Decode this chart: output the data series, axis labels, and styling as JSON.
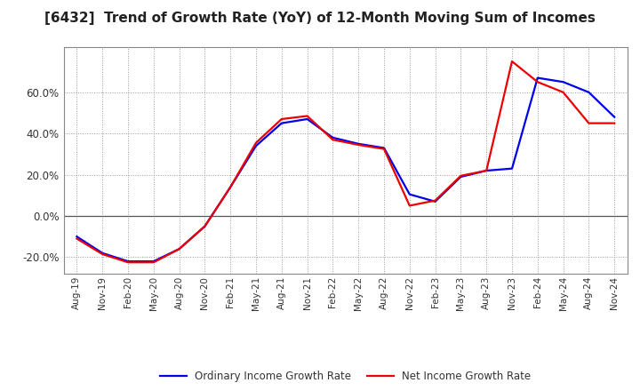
{
  "title": "[6432]  Trend of Growth Rate (YoY) of 12-Month Moving Sum of Incomes",
  "title_fontsize": 11,
  "x_labels": [
    "Aug-19",
    "Nov-19",
    "Feb-20",
    "May-20",
    "Aug-20",
    "Nov-20",
    "Feb-21",
    "May-21",
    "Aug-21",
    "Nov-21",
    "Feb-22",
    "May-22",
    "Aug-22",
    "Nov-22",
    "Feb-23",
    "May-23",
    "Aug-23",
    "Nov-23",
    "Feb-24",
    "May-24",
    "Aug-24",
    "Nov-24"
  ],
  "ordinary_income": [
    -10.0,
    -18.0,
    -22.0,
    -22.0,
    -16.0,
    -5.0,
    14.0,
    34.0,
    45.0,
    47.0,
    38.0,
    35.0,
    33.0,
    10.5,
    7.0,
    19.0,
    22.0,
    23.0,
    67.0,
    65.0,
    60.0,
    48.0
  ],
  "net_income": [
    -11.0,
    -18.5,
    -22.5,
    -22.5,
    -16.0,
    -5.0,
    14.0,
    35.5,
    47.0,
    48.5,
    37.0,
    34.5,
    32.5,
    5.0,
    7.5,
    19.5,
    22.0,
    75.0,
    65.0,
    60.0,
    45.0,
    45.0
  ],
  "ordinary_color": "#0000ee",
  "net_color": "#ee0000",
  "ylim": [
    -28,
    82
  ],
  "yticks": [
    -20.0,
    0.0,
    20.0,
    40.0,
    60.0
  ],
  "background_color": "#ffffff",
  "plot_bg_color": "#ffffff",
  "grid_color": "#999999",
  "linewidth": 1.6,
  "legend_label_ordinary": "Ordinary Income Growth Rate",
  "legend_label_net": "Net Income Growth Rate"
}
